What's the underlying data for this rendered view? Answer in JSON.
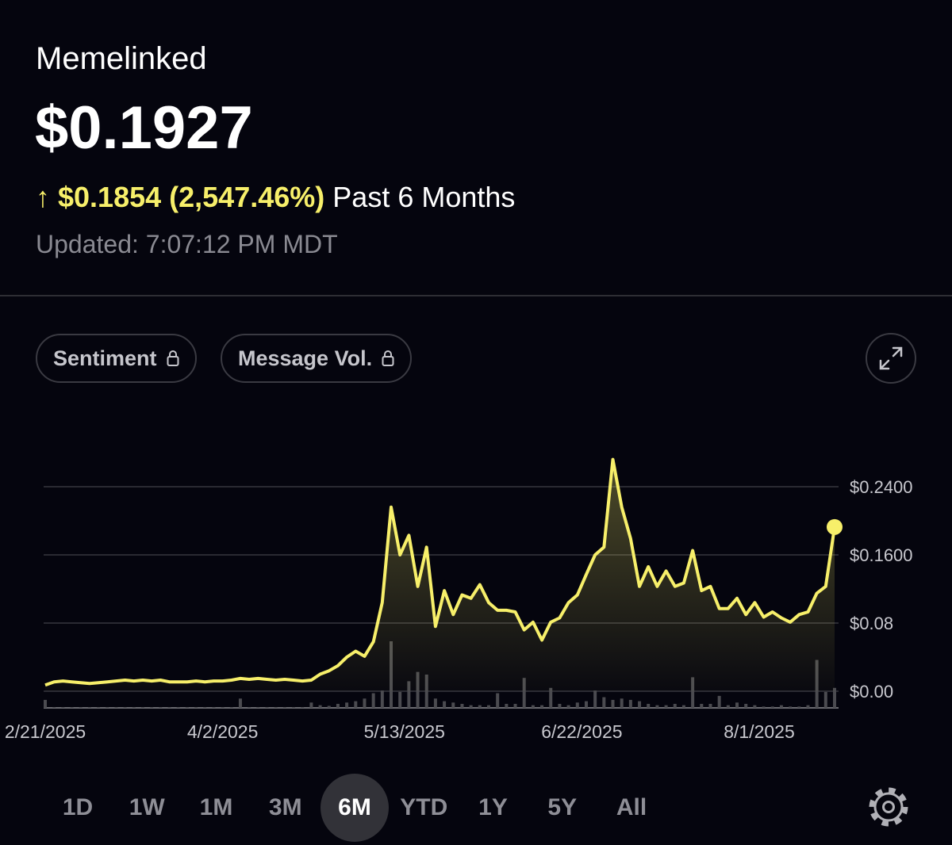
{
  "header": {
    "name": "Memelinked",
    "price": "$0.1927",
    "change": "↑ $0.1854 (2,547.46%)",
    "period": "Past 6 Months",
    "updated": "Updated: 7:07:12 PM MDT"
  },
  "toggles": [
    "Sentiment",
    "Message Vol."
  ],
  "ranges": [
    "1D",
    "1W",
    "1M",
    "3M",
    "6M",
    "YTD",
    "1Y",
    "5Y",
    "All"
  ],
  "selected_range": "6M",
  "chart_data": {
    "type": "line",
    "x": [
      "2/21/2025",
      "2/23/2025",
      "2/25/2025",
      "2/27/2025",
      "3/1/2025",
      "3/3/2025",
      "3/5/2025",
      "3/7/2025",
      "3/9/2025",
      "3/11/2025",
      "3/13/2025",
      "3/15/2025",
      "3/17/2025",
      "3/19/2025",
      "3/21/2025",
      "3/23/2025",
      "3/25/2025",
      "3/27/2025",
      "3/29/2025",
      "3/31/2025",
      "4/2/2025",
      "4/4/2025",
      "4/6/2025",
      "4/8/2025",
      "4/10/2025",
      "4/12/2025",
      "4/14/2025",
      "4/16/2025",
      "4/18/2025",
      "4/20/2025",
      "4/22/2025",
      "4/24/2025",
      "4/26/2025",
      "4/28/2025",
      "4/30/2025",
      "5/2/2025",
      "5/4/2025",
      "5/6/2025",
      "5/8/2025",
      "5/10/2025",
      "5/12/2025",
      "5/14/2025",
      "5/16/2025",
      "5/18/2025",
      "5/20/2025",
      "5/22/2025",
      "5/24/2025",
      "5/26/2025",
      "5/28/2025",
      "5/30/2025",
      "6/1/2025",
      "6/3/2025",
      "6/5/2025",
      "6/7/2025",
      "6/9/2025",
      "6/11/2025",
      "6/13/2025",
      "6/15/2025",
      "6/17/2025",
      "6/19/2025",
      "6/21/2025",
      "6/23/2025",
      "6/25/2025",
      "6/27/2025",
      "6/29/2025",
      "7/1/2025",
      "7/3/2025",
      "7/5/2025",
      "7/7/2025",
      "7/9/2025",
      "7/11/2025",
      "7/13/2025",
      "7/15/2025",
      "7/17/2025",
      "7/19/2025",
      "7/21/2025",
      "7/23/2025",
      "7/25/2025",
      "7/27/2025",
      "7/29/2025",
      "7/31/2025",
      "8/2/2025",
      "8/4/2025",
      "8/6/2025",
      "8/8/2025",
      "8/10/2025",
      "8/12/2025",
      "8/14/2025",
      "8/16/2025",
      "8/18/2025"
    ],
    "series": [
      {
        "color": "#f7ef6a",
        "values": [
          0.0073,
          0.011,
          0.012,
          0.011,
          0.01,
          0.009,
          0.01,
          0.011,
          0.012,
          0.013,
          0.012,
          0.013,
          0.012,
          0.013,
          0.011,
          0.011,
          0.011,
          0.012,
          0.011,
          0.012,
          0.012,
          0.013,
          0.015,
          0.014,
          0.015,
          0.014,
          0.013,
          0.014,
          0.013,
          0.012,
          0.013,
          0.02,
          0.024,
          0.03,
          0.04,
          0.047,
          0.041,
          0.058,
          0.104,
          0.216,
          0.16,
          0.183,
          0.123,
          0.169,
          0.076,
          0.118,
          0.09,
          0.113,
          0.109,
          0.125,
          0.104,
          0.095,
          0.095,
          0.093,
          0.072,
          0.081,
          0.06,
          0.081,
          0.086,
          0.104,
          0.113,
          0.137,
          0.16,
          0.169,
          0.272,
          0.216,
          0.179,
          0.123,
          0.146,
          0.123,
          0.141,
          0.123,
          0.127,
          0.165,
          0.118,
          0.123,
          0.097,
          0.097,
          0.109,
          0.09,
          0.104,
          0.087,
          0.093,
          0.086,
          0.081,
          0.09,
          0.093,
          0.115,
          0.123,
          0.1927
        ]
      }
    ],
    "volume": {
      "color": "#4b4b50",
      "values": [
        12,
        1,
        1,
        1,
        1,
        1,
        1,
        1,
        1,
        1,
        1,
        1,
        1,
        1,
        1,
        1,
        1,
        1,
        1,
        1,
        1,
        1,
        14,
        1,
        1,
        1,
        1,
        1,
        1,
        1,
        8,
        4,
        3,
        6,
        8,
        10,
        14,
        22,
        26,
        100,
        24,
        40,
        54,
        50,
        14,
        10,
        8,
        6,
        4,
        4,
        4,
        22,
        6,
        6,
        45,
        4,
        4,
        30,
        6,
        4,
        8,
        10,
        26,
        16,
        12,
        14,
        12,
        10,
        6,
        4,
        4,
        6,
        4,
        46,
        6,
        6,
        18,
        4,
        8,
        6,
        4,
        2,
        2,
        4,
        2,
        2,
        4,
        72,
        24,
        30
      ]
    },
    "xlim": [
      "2/21/2025",
      "8/18/2025"
    ],
    "xticks": [
      "2/21/2025",
      "4/2/2025",
      "5/13/2025",
      "6/22/2025",
      "8/1/2025"
    ],
    "ylim": [
      0,
      0.28
    ],
    "yticks": [
      {
        "value": 0,
        "label": "$0.00"
      },
      {
        "value": 0.08,
        "label": "$0.08"
      },
      {
        "value": 0.16,
        "label": "$0.1600"
      },
      {
        "value": 0.24,
        "label": "$0.2400"
      }
    ],
    "grid": true,
    "marker_last": true
  }
}
